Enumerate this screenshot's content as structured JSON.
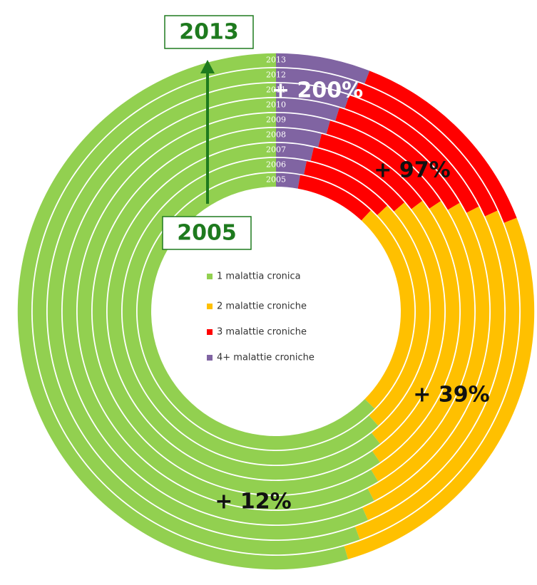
{
  "chart_data": {
    "type": "multi_ring_donut",
    "categories": [
      "2005",
      "2006",
      "2007",
      "2008",
      "2009",
      "2010",
      "2011",
      "2012",
      "2013"
    ],
    "series": [
      {
        "name": "1 malattia cronica",
        "color": "#92d050",
        "values": [
          62.6,
          61.6,
          60.6,
          59.6,
          58.6,
          57.6,
          56.6,
          55.6,
          54.5
        ]
      },
      {
        "name": "2 malattie croniche",
        "color": "#ffc000",
        "values": [
          25.4,
          25.5,
          25.6,
          25.7,
          25.8,
          25.9,
          26.0,
          26.2,
          26.4
        ]
      },
      {
        "name": "3 malattie croniche",
        "color": "#ff0000",
        "values": [
          9.2,
          9.7,
          10.2,
          10.7,
          11.2,
          11.7,
          12.2,
          12.7,
          13.2
        ]
      },
      {
        "name": "4+ malattie croniche",
        "color": "#8064a2",
        "values": [
          2.8,
          3.2,
          3.6,
          4.0,
          4.4,
          4.8,
          5.2,
          5.5,
          5.9
        ]
      }
    ],
    "annotations": [
      "+ 12%",
      "+ 39%",
      "+ 97%",
      "+ 200%"
    ],
    "range_labels": [
      "2005",
      "2013"
    ]
  }
}
